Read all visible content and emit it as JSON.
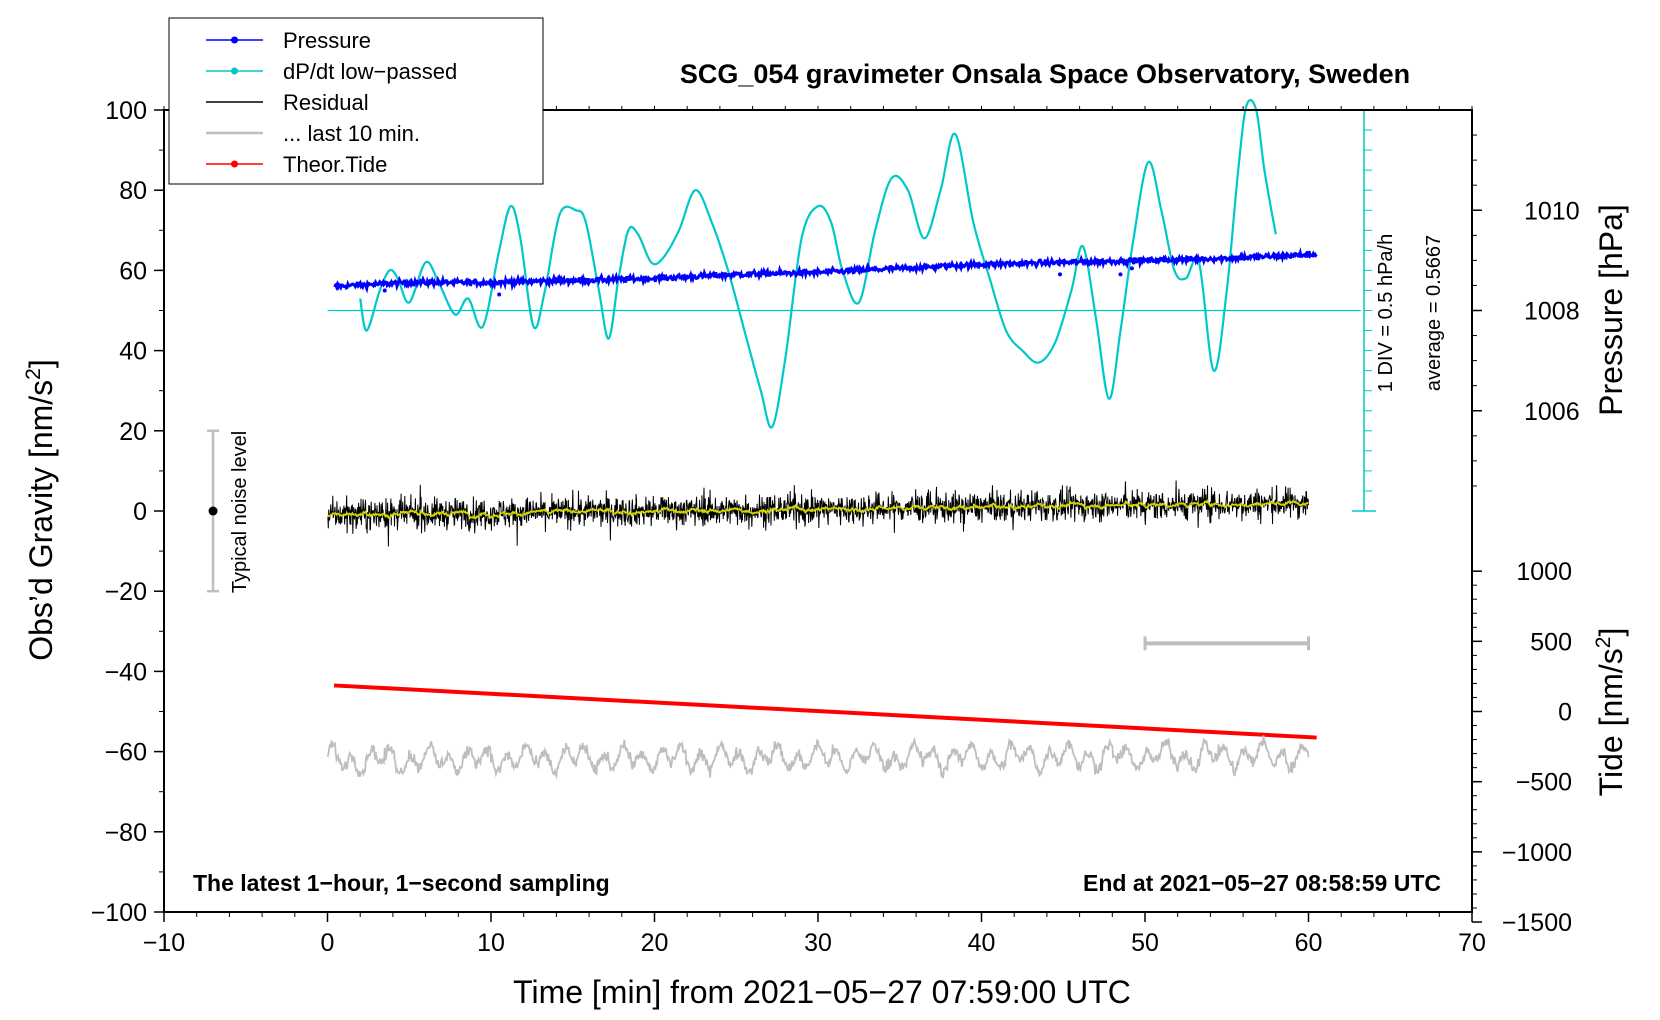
{
  "chart_data": {
    "type": "line",
    "title": "SCG_054 gravimeter Onsala Space Observatory, Sweden",
    "xlabel": "Time [min] from 2021−05−27 07:59:00 UTC",
    "ylabel_left": "Obs’d Gravity [nm/s",
    "ylabel_left_sup": "2",
    "ylabel_left_end": "]",
    "ylabel_pressure": "Pressure [hPa]",
    "ylabel_tide": "Tide [nm/s",
    "ylabel_tide_sup": "2",
    "ylabel_tide_end": "]",
    "xlim": [
      -10,
      70
    ],
    "ylim": [
      -100,
      100
    ],
    "x_ticks": [
      "−10",
      "0",
      "10",
      "20",
      "30",
      "40",
      "50",
      "60",
      "70"
    ],
    "x_tick_values": [
      -10,
      0,
      10,
      20,
      30,
      40,
      50,
      60,
      70
    ],
    "y_ticks": [
      "−100",
      "−80",
      "−60",
      "−40",
      "−20",
      "0",
      "20",
      "40",
      "60",
      "80",
      "100"
    ],
    "y_tick_values": [
      -100,
      -80,
      -60,
      -40,
      -20,
      0,
      20,
      40,
      60,
      80,
      100
    ],
    "pressure_ticks": [
      "1006",
      "1008",
      "1010"
    ],
    "pressure_tick_values": [
      1006,
      1008,
      1010
    ],
    "tide_ticks": [
      "−1500",
      "−1000",
      "−500",
      "0",
      "500",
      "1000"
    ],
    "tide_tick_values": [
      -1500,
      -1000,
      -500,
      0,
      500,
      1000
    ],
    "legend": [
      {
        "label": "Pressure",
        "color": "#0000ff",
        "marker": true
      },
      {
        "label": "dP/dt low−passed",
        "color": "#00c8c8",
        "marker": true
      },
      {
        "label": "Residual",
        "color": "#000000",
        "marker": false
      },
      {
        "label": "... last 10 min.",
        "color": "#bebebe",
        "marker": false
      },
      {
        "label": "Theor.Tide",
        "color": "#ff0000",
        "marker": true
      }
    ],
    "annotations": {
      "noise_label": "Typical noise level",
      "div_label": "1 DIV = 0.5 hPa/h",
      "avg_label": "average = 0.5667",
      "latest": "The latest 1−hour, 1−second sampling",
      "end_at": "End at 2021−05−27 08:58:59 UTC"
    },
    "series": [
      {
        "name": "Pressure",
        "color": "#0000ff",
        "x": [
          0.4,
          5,
          10,
          15,
          20,
          25,
          30,
          35,
          40,
          45,
          50,
          55,
          60.5
        ],
        "y": [
          56,
          57,
          57,
          57.5,
          58,
          59,
          59.5,
          60.5,
          61.5,
          62,
          62.5,
          63,
          64
        ]
      },
      {
        "name": "dP/dt low-passed",
        "color": "#00c8c8",
        "x": [
          2,
          2.4,
          3.2,
          3.8,
          4.3,
          5,
          6,
          6.8,
          7.8,
          8.6,
          9.5,
          10.5,
          11.2,
          11.8,
          12.6,
          13.3,
          14.2,
          15.2,
          15.8,
          16.6,
          17.2,
          17.8,
          18.4,
          19,
          19.8,
          20.5,
          21.5,
          22.5,
          23.5,
          24.5,
          25.5,
          26.5,
          27.2,
          28,
          29,
          30,
          30.8,
          31.5,
          32.5,
          33.5,
          34.5,
          35.5,
          36.5,
          37.5,
          38.4,
          39.5,
          40.5,
          41.5,
          42.5,
          43.5,
          44.5,
          45.5,
          46.2,
          47,
          47.8,
          48.5,
          49.3,
          50.2,
          51,
          51.8,
          52.5,
          53.3,
          54.2,
          55,
          55.7,
          56.2,
          56.8,
          57.3,
          58
        ],
        "y": [
          53,
          45,
          55,
          60,
          58,
          52,
          62,
          57,
          49,
          53,
          46,
          65,
          76,
          68,
          46,
          55,
          74,
          75,
          72,
          55,
          43,
          58,
          70,
          69,
          62,
          63,
          70,
          80,
          72,
          60,
          45,
          30,
          21,
          38,
          68,
          76,
          72,
          60,
          52,
          70,
          83,
          80,
          68,
          80,
          94,
          72,
          58,
          45,
          40,
          37,
          42,
          55,
          66,
          48,
          28,
          45,
          68,
          87,
          75,
          60,
          58,
          62,
          35,
          55,
          85,
          101,
          100,
          85,
          69
        ]
      },
      {
        "name": "Residual",
        "color": "#000000",
        "x": [
          0,
          60
        ],
        "y": [
          -1,
          2
        ]
      },
      {
        "name": "Residual smoothed",
        "color": "#d4d400",
        "x": [
          0,
          60
        ],
        "y": [
          -1,
          1.5
        ]
      },
      {
        "name": "Theor.Tide",
        "color": "#ff0000",
        "x": [
          0.4,
          60.5
        ],
        "y": [
          -43.5,
          -56.5
        ]
      },
      {
        "name": "... last 10 min.",
        "color": "#bebebe",
        "x": [
          0,
          60
        ],
        "y": [
          -62,
          -61
        ]
      }
    ],
    "noise_bar": {
      "x": -7,
      "y": 0,
      "ylow": -20,
      "yhigh": 20
    },
    "last10_bar": {
      "y": -33,
      "xstart": 50,
      "xend": 60
    },
    "dpdt_baseline": 50
  }
}
